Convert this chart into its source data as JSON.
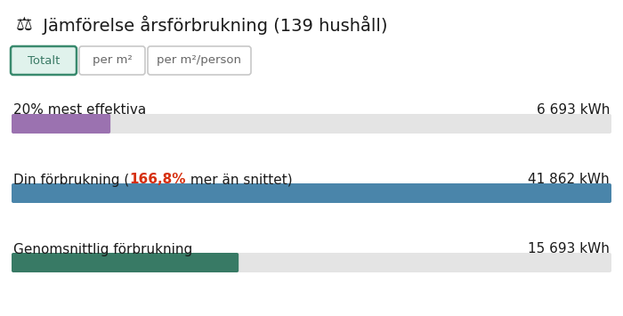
{
  "title_icon": "⚖",
  "title_text": " Jämförelse årsförbrukning (139 hushåll)",
  "buttons": [
    "Totalt",
    "per m²",
    "per m²/person"
  ],
  "button_active": 0,
  "rows": [
    {
      "label_left": "20% mest effektiva",
      "label_right": "6 693 kWh",
      "value": 6693,
      "bar_color": "#9b72b0",
      "bar_bg": "#e4e4e4"
    },
    {
      "label_left_parts": [
        {
          "text": "Din förbrukning (",
          "color": "#1a1a1a"
        },
        {
          "text": "166,8%",
          "color": "#d63010"
        },
        {
          "text": " mer än snittet)",
          "color": "#1a1a1a"
        }
      ],
      "label_right": "41 862 kWh",
      "value": 41862,
      "bar_color": "#4a85aa",
      "bar_bg": "#e4e4e4"
    },
    {
      "label_left": "Genomsnittlig förbrukning",
      "label_right": "15 693 kWh",
      "value": 15693,
      "bar_color": "#387a65",
      "bar_bg": "#e4e4e4"
    }
  ],
  "max_value": 41862,
  "bg_color": "#ffffff",
  "text_color": "#1a1a1a",
  "fig_width": 7.0,
  "fig_height": 3.55
}
